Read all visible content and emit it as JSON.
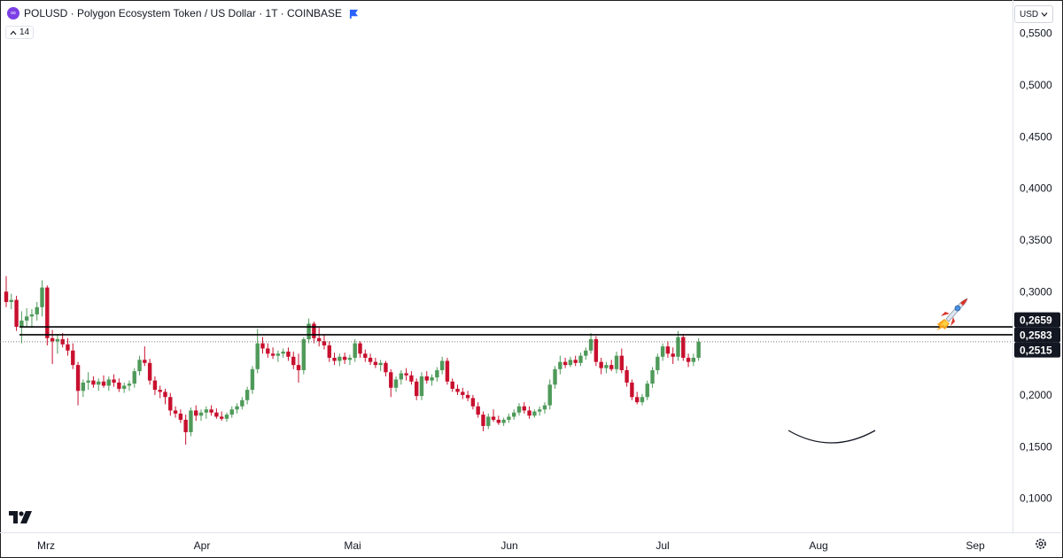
{
  "header": {
    "title": "POLUSD · Polygon Ecosystem Token / US Dollar · 1T · COINBASE",
    "logo_icon": "polygon-logo-icon",
    "flag_icon": "blue-flag-icon"
  },
  "indicator_badge": {
    "label": "14",
    "icon": "chevron-up-icon"
  },
  "currency_menu": {
    "label": "USD",
    "icon": "chevron-down-icon"
  },
  "colors": {
    "up": "#4f9a5a",
    "down": "#c8102e",
    "line": "#000000",
    "tag_bg": "#131722",
    "accent": "#2962ff"
  },
  "icons": {
    "rocket": "rocket-icon",
    "brand": "tradingview-logo-icon",
    "settings": "gear-icon"
  },
  "chart_data": {
    "type": "candlestick",
    "y_axis": {
      "ticks": [
        "0,5500",
        "0,5000",
        "0,4500",
        "0,4000",
        "0,3500",
        "0,3000",
        "0,2500",
        "0,2000",
        "0,1500",
        "0,1000"
      ],
      "ylim": [
        0.095,
        0.58
      ]
    },
    "x_axis": {
      "ticks": [
        "Mrz",
        "Apr",
        "Mai",
        "Jun",
        "Jul",
        "Aug",
        "Sep"
      ]
    },
    "horizontal_lines": [
      {
        "label": "0,2659",
        "value": 0.2659
      },
      {
        "label": "0,2583",
        "value": 0.2583
      }
    ],
    "last_price": {
      "label": "0,2515",
      "value": 0.2515
    },
    "annotations": [
      "rounded-bottom-arc",
      "rocket-emoji"
    ],
    "candles": [
      {
        "o": 0.3,
        "h": 0.315,
        "l": 0.285,
        "c": 0.29
      },
      {
        "o": 0.29,
        "h": 0.298,
        "l": 0.283,
        "c": 0.292
      },
      {
        "o": 0.292,
        "h": 0.296,
        "l": 0.262,
        "c": 0.266
      },
      {
        "o": 0.266,
        "h": 0.281,
        "l": 0.25,
        "c": 0.272
      },
      {
        "o": 0.272,
        "h": 0.284,
        "l": 0.266,
        "c": 0.276
      },
      {
        "o": 0.276,
        "h": 0.283,
        "l": 0.265,
        "c": 0.278
      },
      {
        "o": 0.278,
        "h": 0.29,
        "l": 0.272,
        "c": 0.285
      },
      {
        "o": 0.285,
        "h": 0.311,
        "l": 0.276,
        "c": 0.304
      },
      {
        "o": 0.304,
        "h": 0.306,
        "l": 0.248,
        "c": 0.255
      },
      {
        "o": 0.255,
        "h": 0.263,
        "l": 0.23,
        "c": 0.252
      },
      {
        "o": 0.252,
        "h": 0.259,
        "l": 0.24,
        "c": 0.254
      },
      {
        "o": 0.254,
        "h": 0.26,
        "l": 0.246,
        "c": 0.249
      },
      {
        "o": 0.249,
        "h": 0.255,
        "l": 0.238,
        "c": 0.243
      },
      {
        "o": 0.243,
        "h": 0.25,
        "l": 0.225,
        "c": 0.229
      },
      {
        "o": 0.229,
        "h": 0.232,
        "l": 0.19,
        "c": 0.204
      },
      {
        "o": 0.204,
        "h": 0.215,
        "l": 0.198,
        "c": 0.212
      },
      {
        "o": 0.212,
        "h": 0.222,
        "l": 0.205,
        "c": 0.214
      },
      {
        "o": 0.214,
        "h": 0.218,
        "l": 0.207,
        "c": 0.21
      },
      {
        "o": 0.21,
        "h": 0.216,
        "l": 0.204,
        "c": 0.213
      },
      {
        "o": 0.213,
        "h": 0.219,
        "l": 0.207,
        "c": 0.209
      },
      {
        "o": 0.209,
        "h": 0.218,
        "l": 0.204,
        "c": 0.215
      },
      {
        "o": 0.215,
        "h": 0.22,
        "l": 0.208,
        "c": 0.212
      },
      {
        "o": 0.212,
        "h": 0.216,
        "l": 0.203,
        "c": 0.206
      },
      {
        "o": 0.206,
        "h": 0.212,
        "l": 0.202,
        "c": 0.209
      },
      {
        "o": 0.209,
        "h": 0.214,
        "l": 0.204,
        "c": 0.211
      },
      {
        "o": 0.211,
        "h": 0.226,
        "l": 0.207,
        "c": 0.223
      },
      {
        "o": 0.223,
        "h": 0.238,
        "l": 0.219,
        "c": 0.234
      },
      {
        "o": 0.234,
        "h": 0.247,
        "l": 0.228,
        "c": 0.231
      },
      {
        "o": 0.231,
        "h": 0.235,
        "l": 0.21,
        "c": 0.214
      },
      {
        "o": 0.214,
        "h": 0.218,
        "l": 0.2,
        "c": 0.205
      },
      {
        "o": 0.205,
        "h": 0.209,
        "l": 0.197,
        "c": 0.203
      },
      {
        "o": 0.203,
        "h": 0.206,
        "l": 0.191,
        "c": 0.198
      },
      {
        "o": 0.198,
        "h": 0.202,
        "l": 0.18,
        "c": 0.185
      },
      {
        "o": 0.185,
        "h": 0.189,
        "l": 0.178,
        "c": 0.182
      },
      {
        "o": 0.182,
        "h": 0.186,
        "l": 0.173,
        "c": 0.176
      },
      {
        "o": 0.176,
        "h": 0.181,
        "l": 0.152,
        "c": 0.164
      },
      {
        "o": 0.164,
        "h": 0.188,
        "l": 0.16,
        "c": 0.185
      },
      {
        "o": 0.185,
        "h": 0.19,
        "l": 0.175,
        "c": 0.18
      },
      {
        "o": 0.18,
        "h": 0.186,
        "l": 0.175,
        "c": 0.183
      },
      {
        "o": 0.183,
        "h": 0.189,
        "l": 0.177,
        "c": 0.186
      },
      {
        "o": 0.186,
        "h": 0.19,
        "l": 0.18,
        "c": 0.183
      },
      {
        "o": 0.183,
        "h": 0.187,
        "l": 0.177,
        "c": 0.179
      },
      {
        "o": 0.179,
        "h": 0.184,
        "l": 0.175,
        "c": 0.177
      },
      {
        "o": 0.177,
        "h": 0.183,
        "l": 0.174,
        "c": 0.181
      },
      {
        "o": 0.181,
        "h": 0.189,
        "l": 0.178,
        "c": 0.186
      },
      {
        "o": 0.186,
        "h": 0.192,
        "l": 0.182,
        "c": 0.189
      },
      {
        "o": 0.189,
        "h": 0.198,
        "l": 0.186,
        "c": 0.195
      },
      {
        "o": 0.195,
        "h": 0.208,
        "l": 0.191,
        "c": 0.205
      },
      {
        "o": 0.205,
        "h": 0.228,
        "l": 0.201,
        "c": 0.225
      },
      {
        "o": 0.225,
        "h": 0.264,
        "l": 0.221,
        "c": 0.25
      },
      {
        "o": 0.25,
        "h": 0.256,
        "l": 0.24,
        "c": 0.245
      },
      {
        "o": 0.245,
        "h": 0.25,
        "l": 0.236,
        "c": 0.24
      },
      {
        "o": 0.24,
        "h": 0.246,
        "l": 0.235,
        "c": 0.238
      },
      {
        "o": 0.238,
        "h": 0.243,
        "l": 0.232,
        "c": 0.24
      },
      {
        "o": 0.24,
        "h": 0.245,
        "l": 0.236,
        "c": 0.242
      },
      {
        "o": 0.242,
        "h": 0.246,
        "l": 0.233,
        "c": 0.237
      },
      {
        "o": 0.237,
        "h": 0.242,
        "l": 0.225,
        "c": 0.229
      },
      {
        "o": 0.229,
        "h": 0.24,
        "l": 0.212,
        "c": 0.224
      },
      {
        "o": 0.224,
        "h": 0.256,
        "l": 0.22,
        "c": 0.254
      },
      {
        "o": 0.254,
        "h": 0.274,
        "l": 0.25,
        "c": 0.269
      },
      {
        "o": 0.269,
        "h": 0.271,
        "l": 0.25,
        "c": 0.255
      },
      {
        "o": 0.255,
        "h": 0.265,
        "l": 0.247,
        "c": 0.252
      },
      {
        "o": 0.252,
        "h": 0.258,
        "l": 0.244,
        "c": 0.248
      },
      {
        "o": 0.248,
        "h": 0.252,
        "l": 0.232,
        "c": 0.236
      },
      {
        "o": 0.236,
        "h": 0.241,
        "l": 0.229,
        "c": 0.233
      },
      {
        "o": 0.233,
        "h": 0.24,
        "l": 0.228,
        "c": 0.237
      },
      {
        "o": 0.237,
        "h": 0.241,
        "l": 0.23,
        "c": 0.234
      },
      {
        "o": 0.234,
        "h": 0.239,
        "l": 0.229,
        "c": 0.236
      },
      {
        "o": 0.236,
        "h": 0.254,
        "l": 0.232,
        "c": 0.25
      },
      {
        "o": 0.25,
        "h": 0.252,
        "l": 0.236,
        "c": 0.24
      },
      {
        "o": 0.24,
        "h": 0.244,
        "l": 0.232,
        "c": 0.236
      },
      {
        "o": 0.236,
        "h": 0.24,
        "l": 0.229,
        "c": 0.232
      },
      {
        "o": 0.232,
        "h": 0.236,
        "l": 0.226,
        "c": 0.229
      },
      {
        "o": 0.229,
        "h": 0.234,
        "l": 0.223,
        "c": 0.231
      },
      {
        "o": 0.231,
        "h": 0.233,
        "l": 0.218,
        "c": 0.222
      },
      {
        "o": 0.222,
        "h": 0.225,
        "l": 0.198,
        "c": 0.207
      },
      {
        "o": 0.207,
        "h": 0.218,
        "l": 0.203,
        "c": 0.215
      },
      {
        "o": 0.215,
        "h": 0.224,
        "l": 0.21,
        "c": 0.221
      },
      {
        "o": 0.221,
        "h": 0.226,
        "l": 0.214,
        "c": 0.219
      },
      {
        "o": 0.219,
        "h": 0.223,
        "l": 0.21,
        "c": 0.213
      },
      {
        "o": 0.213,
        "h": 0.216,
        "l": 0.195,
        "c": 0.199
      },
      {
        "o": 0.199,
        "h": 0.222,
        "l": 0.195,
        "c": 0.218
      },
      {
        "o": 0.218,
        "h": 0.223,
        "l": 0.211,
        "c": 0.214
      },
      {
        "o": 0.214,
        "h": 0.22,
        "l": 0.209,
        "c": 0.217
      },
      {
        "o": 0.217,
        "h": 0.227,
        "l": 0.213,
        "c": 0.224
      },
      {
        "o": 0.224,
        "h": 0.237,
        "l": 0.22,
        "c": 0.233
      },
      {
        "o": 0.233,
        "h": 0.236,
        "l": 0.21,
        "c": 0.213
      },
      {
        "o": 0.213,
        "h": 0.216,
        "l": 0.203,
        "c": 0.206
      },
      {
        "o": 0.206,
        "h": 0.21,
        "l": 0.2,
        "c": 0.203
      },
      {
        "o": 0.203,
        "h": 0.207,
        "l": 0.196,
        "c": 0.2
      },
      {
        "o": 0.2,
        "h": 0.204,
        "l": 0.194,
        "c": 0.197
      },
      {
        "o": 0.197,
        "h": 0.2,
        "l": 0.186,
        "c": 0.189
      },
      {
        "o": 0.189,
        "h": 0.193,
        "l": 0.178,
        "c": 0.181
      },
      {
        "o": 0.181,
        "h": 0.184,
        "l": 0.165,
        "c": 0.17
      },
      {
        "o": 0.17,
        "h": 0.182,
        "l": 0.167,
        "c": 0.179
      },
      {
        "o": 0.179,
        "h": 0.186,
        "l": 0.174,
        "c": 0.176
      },
      {
        "o": 0.176,
        "h": 0.18,
        "l": 0.171,
        "c": 0.173
      },
      {
        "o": 0.173,
        "h": 0.178,
        "l": 0.17,
        "c": 0.176
      },
      {
        "o": 0.176,
        "h": 0.182,
        "l": 0.173,
        "c": 0.179
      },
      {
        "o": 0.179,
        "h": 0.186,
        "l": 0.176,
        "c": 0.183
      },
      {
        "o": 0.183,
        "h": 0.192,
        "l": 0.18,
        "c": 0.189
      },
      {
        "o": 0.189,
        "h": 0.193,
        "l": 0.182,
        "c": 0.185
      },
      {
        "o": 0.185,
        "h": 0.189,
        "l": 0.177,
        "c": 0.18
      },
      {
        "o": 0.18,
        "h": 0.186,
        "l": 0.178,
        "c": 0.184
      },
      {
        "o": 0.184,
        "h": 0.189,
        "l": 0.18,
        "c": 0.186
      },
      {
        "o": 0.186,
        "h": 0.193,
        "l": 0.182,
        "c": 0.19
      },
      {
        "o": 0.19,
        "h": 0.215,
        "l": 0.186,
        "c": 0.21
      },
      {
        "o": 0.21,
        "h": 0.228,
        "l": 0.206,
        "c": 0.225
      },
      {
        "o": 0.225,
        "h": 0.238,
        "l": 0.22,
        "c": 0.232
      },
      {
        "o": 0.232,
        "h": 0.236,
        "l": 0.226,
        "c": 0.229
      },
      {
        "o": 0.229,
        "h": 0.237,
        "l": 0.227,
        "c": 0.234
      },
      {
        "o": 0.234,
        "h": 0.238,
        "l": 0.228,
        "c": 0.231
      },
      {
        "o": 0.231,
        "h": 0.241,
        "l": 0.228,
        "c": 0.238
      },
      {
        "o": 0.238,
        "h": 0.246,
        "l": 0.234,
        "c": 0.243
      },
      {
        "o": 0.243,
        "h": 0.26,
        "l": 0.24,
        "c": 0.254
      },
      {
        "o": 0.254,
        "h": 0.257,
        "l": 0.228,
        "c": 0.232
      },
      {
        "o": 0.232,
        "h": 0.236,
        "l": 0.22,
        "c": 0.226
      },
      {
        "o": 0.226,
        "h": 0.232,
        "l": 0.221,
        "c": 0.229
      },
      {
        "o": 0.229,
        "h": 0.234,
        "l": 0.223,
        "c": 0.225
      },
      {
        "o": 0.225,
        "h": 0.242,
        "l": 0.221,
        "c": 0.238
      },
      {
        "o": 0.238,
        "h": 0.245,
        "l": 0.221,
        "c": 0.224
      },
      {
        "o": 0.224,
        "h": 0.228,
        "l": 0.208,
        "c": 0.212
      },
      {
        "o": 0.212,
        "h": 0.215,
        "l": 0.195,
        "c": 0.198
      },
      {
        "o": 0.198,
        "h": 0.203,
        "l": 0.191,
        "c": 0.193
      },
      {
        "o": 0.193,
        "h": 0.201,
        "l": 0.19,
        "c": 0.198
      },
      {
        "o": 0.198,
        "h": 0.214,
        "l": 0.195,
        "c": 0.211
      },
      {
        "o": 0.211,
        "h": 0.227,
        "l": 0.207,
        "c": 0.224
      },
      {
        "o": 0.224,
        "h": 0.24,
        "l": 0.22,
        "c": 0.237
      },
      {
        "o": 0.237,
        "h": 0.25,
        "l": 0.233,
        "c": 0.247
      },
      {
        "o": 0.247,
        "h": 0.252,
        "l": 0.236,
        "c": 0.24
      },
      {
        "o": 0.24,
        "h": 0.246,
        "l": 0.23,
        "c": 0.237
      },
      {
        "o": 0.237,
        "h": 0.262,
        "l": 0.233,
        "c": 0.256
      },
      {
        "o": 0.256,
        "h": 0.259,
        "l": 0.233,
        "c": 0.236
      },
      {
        "o": 0.236,
        "h": 0.24,
        "l": 0.227,
        "c": 0.232
      },
      {
        "o": 0.232,
        "h": 0.24,
        "l": 0.228,
        "c": 0.236
      },
      {
        "o": 0.236,
        "h": 0.255,
        "l": 0.233,
        "c": 0.2515
      }
    ]
  },
  "time_axis_ticks": [
    "Mrz",
    "Apr",
    "Mai",
    "Jun",
    "Jul",
    "Aug",
    "Sep"
  ]
}
